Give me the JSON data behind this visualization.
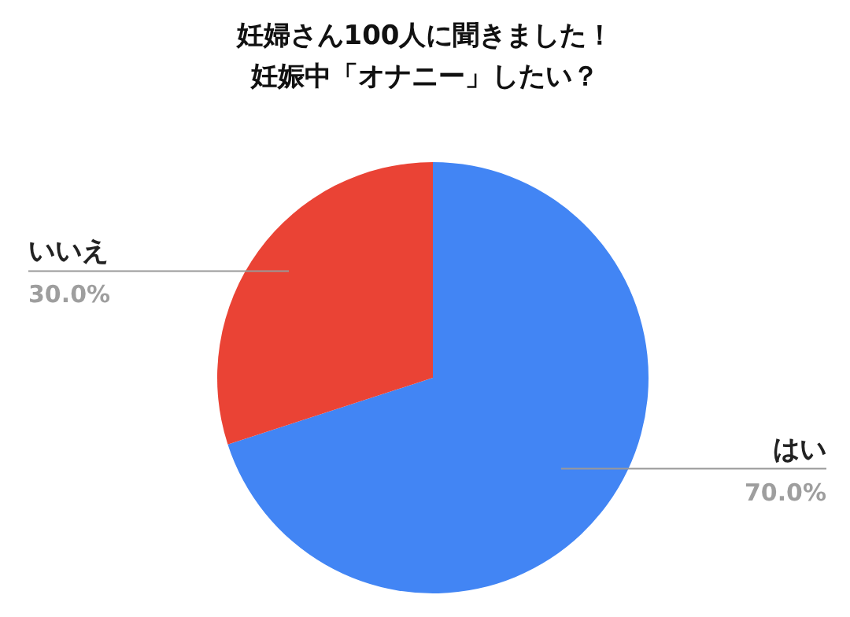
{
  "chart_data": {
    "type": "pie",
    "title": "妊婦さん100人に聞きました！",
    "subtitle": "妊娠中「オナニー」したい？",
    "categories": [
      "はい",
      "いいえ"
    ],
    "values": [
      70,
      30
    ],
    "colors": [
      "#4285f4",
      "#ea4335"
    ],
    "value_labels": [
      "70.0%",
      "30.0%"
    ]
  }
}
